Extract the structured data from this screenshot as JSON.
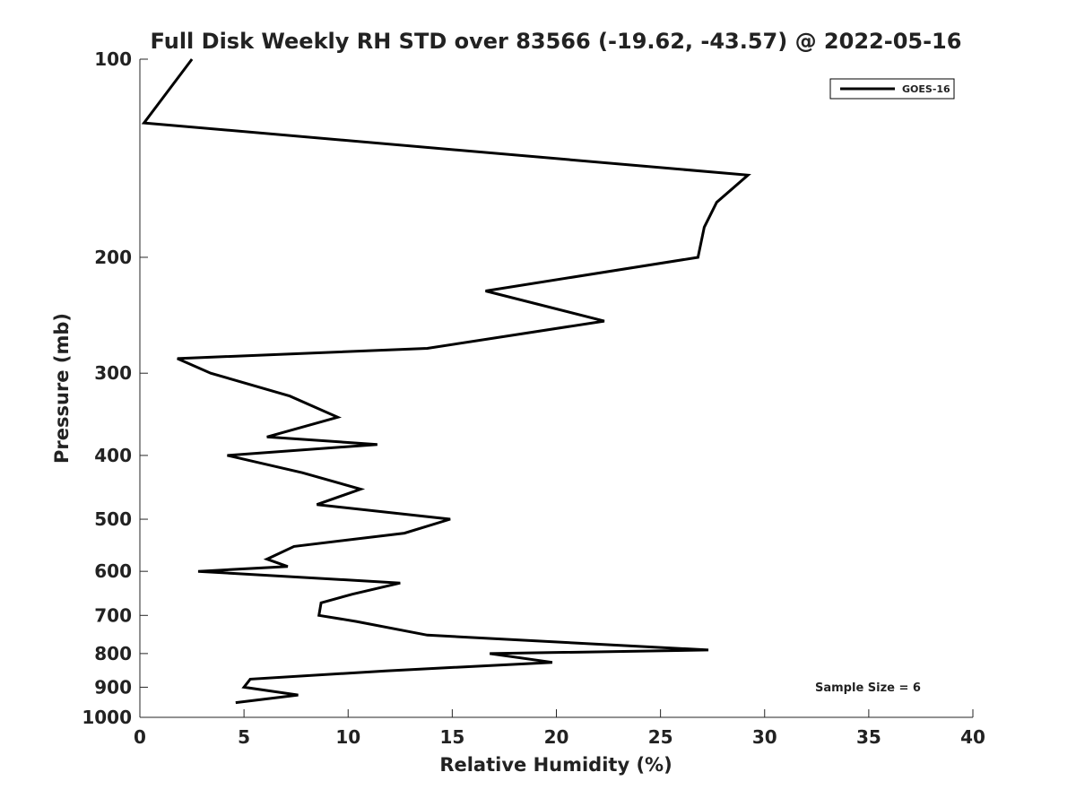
{
  "chart_data": {
    "type": "line",
    "title": "Full Disk Weekly RH STD over 83566 (-19.62, -43.57) @ 2022-05-16",
    "xlabel": "Relative Humidity (%)",
    "ylabel": "Pressure (mb)",
    "xlim": [
      0,
      40
    ],
    "ylim": [
      100,
      1000
    ],
    "y_scale": "log",
    "y_reversed": true,
    "x_ticks": [
      0,
      5,
      10,
      15,
      20,
      25,
      30,
      35,
      40
    ],
    "y_ticks": [
      100,
      200,
      300,
      400,
      500,
      600,
      700,
      800,
      900,
      1000
    ],
    "legend": {
      "position": "top-right",
      "entries": [
        "GOES-16"
      ]
    },
    "annotation": "Sample Size = 6",
    "series": [
      {
        "name": "GOES-16",
        "color": "#000000",
        "points": [
          [
            2.5,
            100
          ],
          [
            0.2,
            125
          ],
          [
            29.2,
            150
          ],
          [
            27.7,
            165
          ],
          [
            27.1,
            180
          ],
          [
            26.8,
            200
          ],
          [
            16.6,
            225
          ],
          [
            22.3,
            250
          ],
          [
            13.8,
            275
          ],
          [
            1.8,
            285
          ],
          [
            3.4,
            300
          ],
          [
            7.2,
            325
          ],
          [
            9.5,
            350
          ],
          [
            6.1,
            375
          ],
          [
            11.4,
            385
          ],
          [
            4.2,
            400
          ],
          [
            7.8,
            425
          ],
          [
            10.6,
            450
          ],
          [
            8.5,
            475
          ],
          [
            14.9,
            500
          ],
          [
            12.7,
            525
          ],
          [
            7.4,
            550
          ],
          [
            6.1,
            575
          ],
          [
            7.1,
            590
          ],
          [
            2.8,
            600
          ],
          [
            12.5,
            625
          ],
          [
            10.2,
            650
          ],
          [
            8.7,
            670
          ],
          [
            8.6,
            700
          ],
          [
            10.4,
            715
          ],
          [
            13.8,
            750
          ],
          [
            27.3,
            790
          ],
          [
            16.8,
            800
          ],
          [
            19.8,
            825
          ],
          [
            11.8,
            850
          ],
          [
            5.3,
            875
          ],
          [
            5.0,
            900
          ],
          [
            7.6,
            925
          ],
          [
            4.6,
            950
          ]
        ]
      }
    ]
  }
}
